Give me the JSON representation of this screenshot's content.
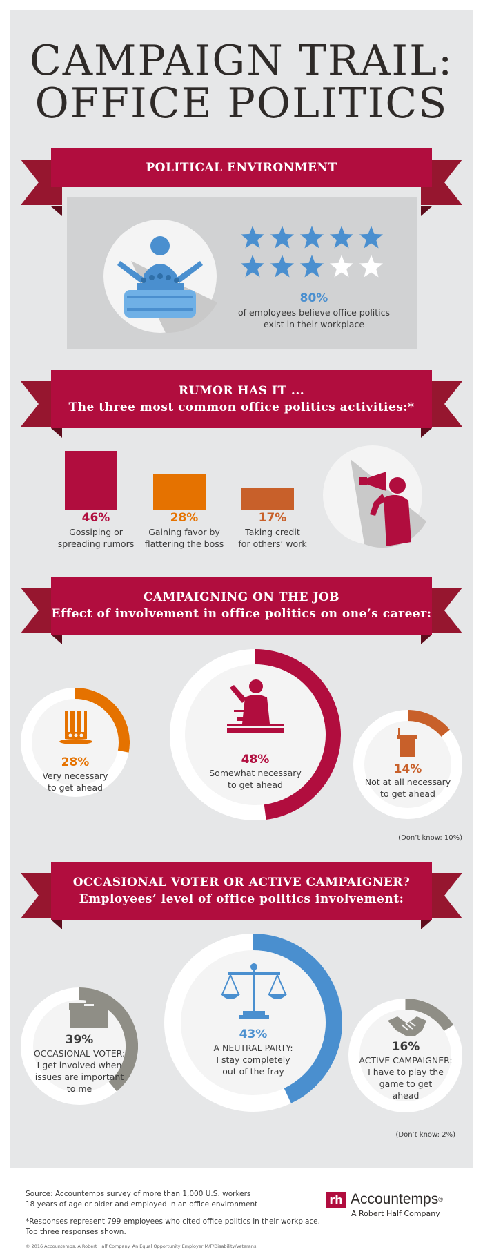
{
  "title": {
    "line1": "CAMPAIGN TRAIL:",
    "line2": "OFFICE POLITICS"
  },
  "colors": {
    "crimson": "#b10d3e",
    "orange": "#e57200",
    "rust": "#c8602a",
    "blue": "#4a8fcf",
    "gray": "#8f8e86",
    "panel": "#e6e7e8"
  },
  "section1": {
    "banner": "POLITICAL ENVIRONMENT",
    "stat": "80%",
    "caption_l1": "of employees believe office politics",
    "caption_l2": "exist in their workplace",
    "icon": "politician-podium-icon"
  },
  "section2": {
    "banner_l1": "RUMOR HAS IT ...",
    "banner_l2": "The three most common office politics activities:*",
    "icon": "megaphone-person-icon",
    "bars": [
      {
        "pct": "46%",
        "l1": "Gossiping or",
        "l2": "spreading rumors"
      },
      {
        "pct": "28%",
        "l1": "Gaining favor by",
        "l2": "flattering the boss"
      },
      {
        "pct": "17%",
        "l1": "Taking credit",
        "l2": "for others’ work"
      }
    ]
  },
  "section3": {
    "banner_l1": "CAMPAIGNING ON THE JOB",
    "banner_l2": "Effect of involvement in office politics on one’s career:",
    "items": [
      {
        "pct": "28%",
        "l1": "Very necessary",
        "l2": "to get ahead",
        "icon": "uncle-sam-hat-icon"
      },
      {
        "pct": "48%",
        "l1": "Somewhat necessary",
        "l2": "to get ahead",
        "icon": "speaker-at-podium-icon"
      },
      {
        "pct": "14%",
        "l1": "Not at all necessary",
        "l2": "to get ahead",
        "icon": "lectern-icon"
      }
    ],
    "dont_know": "(Don’t know: 10%)"
  },
  "section4": {
    "banner_l1": "OCCASIONAL VOTER OR ACTIVE CAMPAIGNER?",
    "banner_l2": "Employees’ level of office politics involvement:",
    "items": [
      {
        "pct": "39%",
        "l1": "OCCASIONAL VOTER:",
        "l2": "I get involved when",
        "l3": "issues are important",
        "l4": "to me",
        "icon": "ballot-box-icon"
      },
      {
        "pct": "43%",
        "l1": "A NEUTRAL PARTY:",
        "l2": "I stay completely",
        "l3": "out of the fray",
        "icon": "scales-icon"
      },
      {
        "pct": "16%",
        "l1": "ACTIVE CAMPAIGNER:",
        "l2": "I have to play the",
        "l3": "game to get",
        "l4": "ahead",
        "icon": "handshake-icon"
      }
    ],
    "dont_know": "(Don’t know: 2%)"
  },
  "footer": {
    "source_l1": "Source: Accountemps survey of more than 1,000 U.S. workers",
    "source_l2": "18 years of age or older and employed in an office environment",
    "note_l1": "*Responses represent 799 employees who cited office politics in their workplace.",
    "note_l2": "Top three responses shown.",
    "copyright": "© 2016 Accountemps. A Robert Half Company. An Equal Opportunity Employer M/F/Disability/Veterans.",
    "logo_mark": "rh",
    "logo_name": "Accountemps",
    "logo_reg": "®",
    "logo_sub": "A Robert Half Company"
  },
  "chart_data": [
    {
      "type": "rating",
      "categories": [
        "employees believe office politics exist in their workplace"
      ],
      "values": [
        80
      ],
      "max_stars": 5,
      "filled_stars": 4
    },
    {
      "type": "bar",
      "categories": [
        "Gossiping or spreading rumors",
        "Gaining favor by flattering the boss",
        "Taking credit for others’ work"
      ],
      "values": [
        46,
        28,
        17
      ]
    },
    {
      "type": "pie",
      "categories": [
        "Very necessary to get ahead",
        "Somewhat necessary to get ahead",
        "Not at all necessary to get ahead",
        "Don’t know"
      ],
      "values": [
        28,
        48,
        14,
        10
      ]
    },
    {
      "type": "pie",
      "categories": [
        "OCCASIONAL VOTER",
        "A NEUTRAL PARTY",
        "ACTIVE CAMPAIGNER",
        "Don’t know"
      ],
      "values": [
        39,
        43,
        16,
        2
      ]
    }
  ]
}
